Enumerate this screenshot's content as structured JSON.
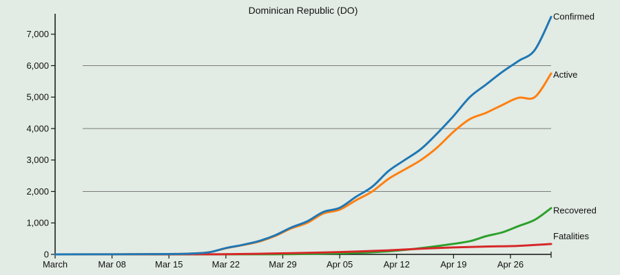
{
  "chart_data": {
    "type": "line",
    "title": "Dominican Republic (DO)",
    "xlabel": "",
    "ylabel": "",
    "x_start": "2020-03-01",
    "x_end": "2020-05-01",
    "x_ticks": [
      {
        "date": "2020-03-01",
        "label": "March"
      },
      {
        "date": "2020-03-08",
        "label": "Mar 08"
      },
      {
        "date": "2020-03-15",
        "label": "Mar 15"
      },
      {
        "date": "2020-03-22",
        "label": "Mar 22"
      },
      {
        "date": "2020-03-29",
        "label": "Mar 29"
      },
      {
        "date": "2020-04-05",
        "label": "Apr 05"
      },
      {
        "date": "2020-04-12",
        "label": "Apr 12"
      },
      {
        "date": "2020-04-19",
        "label": "Apr 19"
      },
      {
        "date": "2020-04-26",
        "label": "Apr 26"
      }
    ],
    "ylim": [
      0,
      7650
    ],
    "y_ticks": [
      {
        "value": 0,
        "label": "0"
      },
      {
        "value": 1000,
        "label": "1,000"
      },
      {
        "value": 2000,
        "label": "2,000"
      },
      {
        "value": 3000,
        "label": "3,000"
      },
      {
        "value": 4000,
        "label": "4,000"
      },
      {
        "value": 5000,
        "label": "5,000"
      },
      {
        "value": 6000,
        "label": "6,000"
      },
      {
        "value": 7000,
        "label": "7,000"
      }
    ],
    "gridlines": [
      2000,
      4000,
      6000
    ],
    "series": [
      {
        "name": "Confirmed",
        "color": "#1f77b4",
        "points": [
          [
            "2020-03-01",
            0
          ],
          [
            "2020-03-15",
            10
          ],
          [
            "2020-03-18",
            30
          ],
          [
            "2020-03-20",
            70
          ],
          [
            "2020-03-22",
            200
          ],
          [
            "2020-03-24",
            300
          ],
          [
            "2020-03-26",
            420
          ],
          [
            "2020-03-28",
            600
          ],
          [
            "2020-03-30",
            850
          ],
          [
            "2020-04-01",
            1050
          ],
          [
            "2020-04-03",
            1350
          ],
          [
            "2020-04-05",
            1480
          ],
          [
            "2020-04-07",
            1830
          ],
          [
            "2020-04-09",
            2150
          ],
          [
            "2020-04-11",
            2650
          ],
          [
            "2020-04-13",
            3000
          ],
          [
            "2020-04-15",
            3350
          ],
          [
            "2020-04-17",
            3850
          ],
          [
            "2020-04-19",
            4400
          ],
          [
            "2020-04-21",
            5000
          ],
          [
            "2020-04-23",
            5400
          ],
          [
            "2020-04-25",
            5800
          ],
          [
            "2020-04-27",
            6150
          ],
          [
            "2020-04-29",
            6500
          ],
          [
            "2020-05-01",
            7550
          ]
        ]
      },
      {
        "name": "Active",
        "color": "#ff7f0e",
        "points": [
          [
            "2020-03-01",
            0
          ],
          [
            "2020-03-15",
            10
          ],
          [
            "2020-03-18",
            30
          ],
          [
            "2020-03-20",
            70
          ],
          [
            "2020-03-22",
            195
          ],
          [
            "2020-03-24",
            290
          ],
          [
            "2020-03-26",
            400
          ],
          [
            "2020-03-28",
            580
          ],
          [
            "2020-03-30",
            820
          ],
          [
            "2020-04-01",
            1000
          ],
          [
            "2020-04-03",
            1300
          ],
          [
            "2020-04-05",
            1420
          ],
          [
            "2020-04-07",
            1720
          ],
          [
            "2020-04-09",
            2000
          ],
          [
            "2020-04-11",
            2400
          ],
          [
            "2020-04-13",
            2700
          ],
          [
            "2020-04-15",
            3000
          ],
          [
            "2020-04-17",
            3400
          ],
          [
            "2020-04-19",
            3900
          ],
          [
            "2020-04-21",
            4300
          ],
          [
            "2020-04-23",
            4500
          ],
          [
            "2020-04-25",
            4750
          ],
          [
            "2020-04-27",
            4980
          ],
          [
            "2020-04-29",
            5000
          ],
          [
            "2020-05-01",
            5750
          ]
        ]
      },
      {
        "name": "Recovered",
        "color": "#2ca02c",
        "points": [
          [
            "2020-03-01",
            0
          ],
          [
            "2020-03-25",
            2
          ],
          [
            "2020-04-01",
            15
          ],
          [
            "2020-04-06",
            40
          ],
          [
            "2020-04-10",
            80
          ],
          [
            "2020-04-14",
            170
          ],
          [
            "2020-04-18",
            300
          ],
          [
            "2020-04-21",
            420
          ],
          [
            "2020-04-23",
            580
          ],
          [
            "2020-04-25",
            700
          ],
          [
            "2020-04-27",
            900
          ],
          [
            "2020-04-29",
            1100
          ],
          [
            "2020-05-01",
            1470
          ]
        ]
      },
      {
        "name": "Fatalities",
        "color": "#d62728",
        "points": [
          [
            "2020-03-01",
            0
          ],
          [
            "2020-03-18",
            2
          ],
          [
            "2020-03-22",
            5
          ],
          [
            "2020-03-26",
            20
          ],
          [
            "2020-03-30",
            40
          ],
          [
            "2020-04-03",
            60
          ],
          [
            "2020-04-07",
            90
          ],
          [
            "2020-04-11",
            130
          ],
          [
            "2020-04-15",
            180
          ],
          [
            "2020-04-19",
            220
          ],
          [
            "2020-04-23",
            250
          ],
          [
            "2020-04-27",
            270
          ],
          [
            "2020-05-01",
            330
          ]
        ]
      }
    ]
  }
}
